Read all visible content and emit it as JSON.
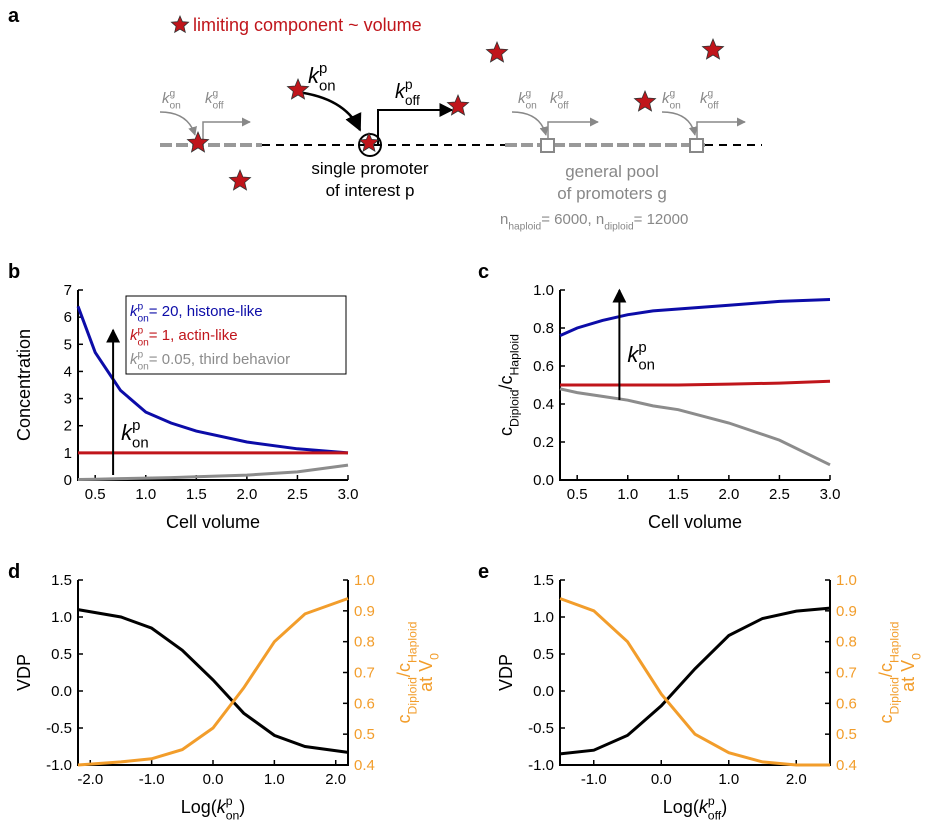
{
  "panel_labels": [
    "a",
    "b",
    "c",
    "d",
    "e"
  ],
  "symbols": {
    "k": "k",
    "p": "p",
    "g": "g",
    "on": "on",
    "off": "off"
  },
  "diagram": {
    "legend": "limiting component ~ volume",
    "single_promoter": [
      "single promoter",
      "of interest p"
    ],
    "general_pool": [
      "general pool",
      "of promoters g"
    ],
    "counts": [
      "n",
      "haploid",
      "=   6000, n",
      "diploid",
      "= 12000"
    ]
  },
  "chart_data": [
    {
      "type": "line",
      "xlabel": [
        "Cell volume"
      ],
      "ylabel": [
        "Concentration"
      ],
      "x": [
        0.33,
        0.5,
        0.75,
        1,
        1.25,
        1.5,
        2,
        2.5,
        3
      ],
      "xlim": [
        0.33,
        3
      ],
      "xticks": [
        0.5,
        {
          "value": 1,
          "label": "1.0"
        },
        1.5,
        {
          "value": 2,
          "label": "2.0"
        },
        2.5,
        {
          "value": 3,
          "label": "3.0"
        }
      ],
      "ylim": [
        0,
        7
      ],
      "yticks": [
        0,
        1,
        2,
        3,
        4,
        5,
        6,
        7
      ],
      "legend": "upper right",
      "legend_symbol": [
        "k",
        "p",
        "on"
      ],
      "annotation": [
        "k",
        "p",
        "on"
      ],
      "series": [
        {
          "name": "= 20, histone-like",
          "color": "#0c0ca8",
          "values": [
            6.4,
            4.7,
            3.3,
            2.5,
            2.1,
            1.8,
            1.4,
            1.15,
            1.0
          ]
        },
        {
          "name": "= 1, actin-like",
          "color": "#c0151b",
          "values": [
            1.0,
            1.0,
            1.0,
            1.0,
            1.0,
            1.0,
            1.0,
            1.0,
            1.0
          ]
        },
        {
          "name": "= 0.05, third behavior",
          "color": "#8c8c8c",
          "values": [
            0.02,
            0.03,
            0.05,
            0.07,
            0.09,
            0.12,
            0.18,
            0.3,
            0.55
          ]
        }
      ]
    },
    {
      "type": "line",
      "xlabel": [
        "Cell volume"
      ],
      "ylabel": [
        "c",
        "Diploid",
        "/c",
        "Haploid"
      ],
      "x": [
        0.33,
        0.5,
        0.75,
        1,
        1.25,
        1.5,
        2,
        2.5,
        3
      ],
      "xlim": [
        0.33,
        3
      ],
      "xticks": [
        0.5,
        {
          "value": 1,
          "label": "1.0"
        },
        1.5,
        {
          "value": 2,
          "label": "2.0"
        },
        2.5,
        {
          "value": 3,
          "label": "3.0"
        }
      ],
      "ylim": [
        0,
        1
      ],
      "yticks": [
        {
          "value": 0,
          "label": "0.0"
        },
        0.2,
        0.4,
        0.6,
        0.8,
        {
          "value": 1,
          "label": "1.0"
        }
      ],
      "annotation": [
        "k",
        "p",
        "on"
      ],
      "series": [
        {
          "color": "#0c0ca8",
          "values": [
            0.76,
            0.8,
            0.84,
            0.87,
            0.89,
            0.9,
            0.92,
            0.94,
            0.95
          ]
        },
        {
          "color": "#c0151b",
          "values": [
            0.5,
            0.5,
            0.5,
            0.5,
            0.5,
            0.5,
            0.505,
            0.51,
            0.52
          ]
        },
        {
          "color": "#8c8c8c",
          "values": [
            0.48,
            0.46,
            0.44,
            0.42,
            0.39,
            0.37,
            0.3,
            0.21,
            0.08
          ]
        }
      ]
    },
    {
      "type": "line",
      "xlabel": [
        "Log(",
        "k",
        "p",
        "on",
        ")"
      ],
      "ylabel": [
        "VDP"
      ],
      "y2label": [
        "c",
        "Diploid",
        "/c",
        "Haploid",
        "at V",
        "0"
      ],
      "x": [
        -2.2,
        -1.5,
        -1,
        -0.5,
        0,
        0.5,
        1,
        1.5,
        2.2
      ],
      "xlim": [
        -2.2,
        2.2
      ],
      "xticks": [
        {
          "value": -2,
          "label": "-2.0"
        },
        {
          "value": -1,
          "label": "-1.0"
        },
        {
          "value": 0,
          "label": "0.0"
        },
        {
          "value": 1,
          "label": "1.0"
        },
        {
          "value": 2,
          "label": "2.0"
        }
      ],
      "ylim": [
        -1,
        1.5
      ],
      "yticks": [
        {
          "value": -1,
          "label": "-1.0"
        },
        -0.5,
        {
          "value": 0,
          "label": "0.0"
        },
        0.5,
        {
          "value": 1,
          "label": "1.0"
        },
        1.5
      ],
      "y2lim": [
        0.4,
        1
      ],
      "y2ticks": [
        0.4,
        0.5,
        0.6,
        0.7,
        0.8,
        0.9,
        {
          "value": 1,
          "label": "1.0"
        }
      ],
      "series": [
        {
          "color": "#000000",
          "values": [
            1.1,
            1.0,
            0.85,
            0.55,
            0.15,
            -0.3,
            -0.6,
            -0.75,
            -0.83
          ]
        },
        {
          "color": "#f29d2b",
          "axis": "y2",
          "values": [
            0.4,
            0.41,
            0.42,
            0.45,
            0.52,
            0.65,
            0.8,
            0.89,
            0.94
          ]
        }
      ]
    },
    {
      "type": "line",
      "xlabel": [
        "Log(",
        "k",
        "p",
        "off",
        ")"
      ],
      "ylabel": [
        "VDP"
      ],
      "y2label": [
        "c",
        "Diploid",
        "/c",
        "Haploid",
        "at V",
        "0"
      ],
      "x": [
        -1.5,
        -1,
        -0.5,
        0,
        0.5,
        1,
        1.5,
        2,
        2.5
      ],
      "xlim": [
        -1.5,
        2.5
      ],
      "xticks": [
        {
          "value": -1,
          "label": "-1.0"
        },
        {
          "value": 0,
          "label": "0.0"
        },
        {
          "value": 1,
          "label": "1.0"
        },
        {
          "value": 2,
          "label": "2.0"
        }
      ],
      "ylim": [
        -1,
        1.5
      ],
      "yticks": [
        {
          "value": -1,
          "label": "-1.0"
        },
        -0.5,
        {
          "value": 0,
          "label": "0.0"
        },
        0.5,
        {
          "value": 1,
          "label": "1.0"
        },
        1.5
      ],
      "y2lim": [
        0.4,
        1
      ],
      "y2ticks": [
        0.4,
        0.5,
        0.6,
        0.7,
        0.8,
        0.9,
        {
          "value": 1,
          "label": "1.0"
        }
      ],
      "series": [
        {
          "color": "#000000",
          "values": [
            -0.85,
            -0.8,
            -0.6,
            -0.2,
            0.3,
            0.75,
            0.98,
            1.08,
            1.12
          ]
        },
        {
          "color": "#f29d2b",
          "axis": "y2",
          "values": [
            0.94,
            0.9,
            0.8,
            0.63,
            0.5,
            0.44,
            0.41,
            0.4,
            0.4
          ]
        }
      ]
    }
  ]
}
